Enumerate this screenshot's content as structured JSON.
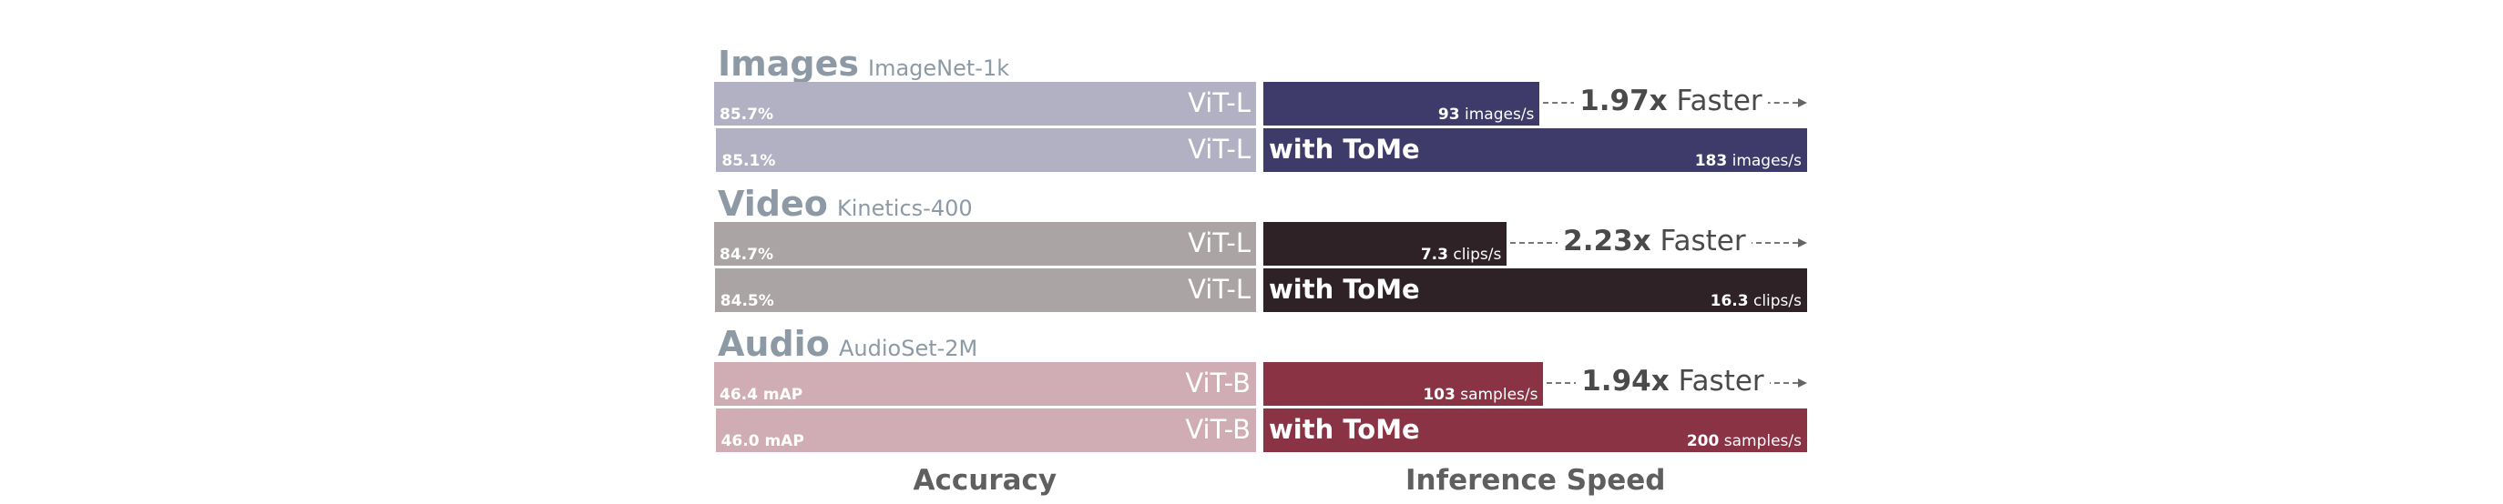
{
  "chart_data": {
    "type": "bar",
    "panels": [
      "Accuracy",
      "Inference Speed"
    ],
    "groups": [
      {
        "title": "Images",
        "subtitle": "ImageNet-1k",
        "rows": [
          {
            "model": "ViT-L",
            "accuracy": "85.7%",
            "accuracy_value": 85.7,
            "speed_num": "93",
            "speed_unit": "images/s",
            "speed_value": 93,
            "tome_label": ""
          },
          {
            "model": "ViT-L",
            "accuracy": "85.1%",
            "accuracy_value": 85.1,
            "speed_num": "183",
            "speed_unit": "images/s",
            "speed_value": 183,
            "tome_label": "with ToMe"
          }
        ],
        "speedup_num": "1.97x",
        "speedup_word": "Faster",
        "colors": {
          "accuracy": "#b1b1c3",
          "speed": "#3e3a6a"
        }
      },
      {
        "title": "Video",
        "subtitle": "Kinetics-400",
        "rows": [
          {
            "model": "ViT-L",
            "accuracy": "84.7%",
            "accuracy_value": 84.7,
            "speed_num": "7.3",
            "speed_unit": "clips/s",
            "speed_value": 7.3,
            "tome_label": ""
          },
          {
            "model": "ViT-L",
            "accuracy": "84.5%",
            "accuracy_value": 84.5,
            "speed_num": "16.3",
            "speed_unit": "clips/s",
            "speed_value": 16.3,
            "tome_label": "with ToMe"
          }
        ],
        "speedup_num": "2.23x",
        "speedup_word": "Faster",
        "colors": {
          "accuracy": "#aba4a4",
          "speed": "#2f2226"
        }
      },
      {
        "title": "Audio",
        "subtitle": "AudioSet-2M",
        "rows": [
          {
            "model": "ViT-B",
            "accuracy": "46.4 mAP",
            "accuracy_value": 46.4,
            "speed_num": "103",
            "speed_unit": "samples/s",
            "speed_value": 103,
            "tome_label": ""
          },
          {
            "model": "ViT-B",
            "accuracy": "46.0 mAP",
            "accuracy_value": 46.0,
            "speed_num": "200",
            "speed_unit": "samples/s",
            "speed_value": 200,
            "tome_label": "with ToMe"
          }
        ],
        "speedup_num": "1.94x",
        "speedup_word": "Faster",
        "colors": {
          "accuracy": "#d0adb4",
          "speed": "#8a3345"
        }
      }
    ]
  }
}
